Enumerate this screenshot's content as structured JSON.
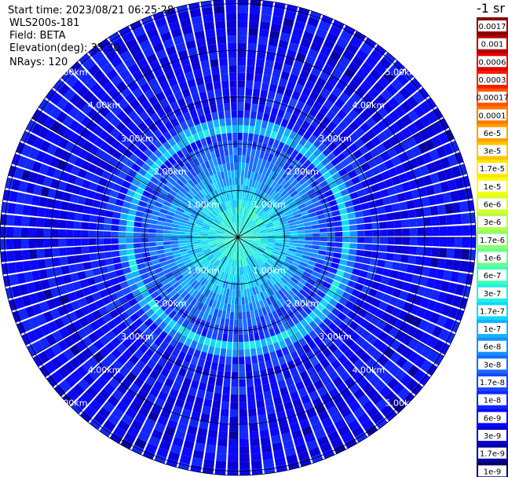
{
  "header": {
    "start_time": "Start time: 2023/08/21 06:25:28",
    "instrument": "WLS200s-181",
    "field": "Field: BETA",
    "elevation": "Elevation(deg): 35.30",
    "nrays": "NRays: 120"
  },
  "chart_data": {
    "type": "heatmap",
    "projection": "polar-ppi",
    "field": "BETA",
    "units_label": "-1 sr",
    "nrays": 120,
    "range_rings_km": [
      1.0,
      2.0,
      3.0,
      4.0,
      5.0
    ],
    "range_labels": [
      "1.00km",
      "2.00km",
      "3.00km",
      "4.00km",
      "5.00km"
    ],
    "max_range_km": 5.0,
    "radial_lines_deg": [
      0,
      30,
      60,
      90,
      120,
      150,
      180,
      210,
      240,
      270,
      300,
      330
    ],
    "colorbar": {
      "ticks": [
        "0.0017",
        "0.001",
        "0.0006",
        "0.0003",
        "0.00017",
        "0.0001",
        "6e-5",
        "3e-5",
        "1.7e-5",
        "1e-5",
        "6e-6",
        "3e-6",
        "1.7e-6",
        "1e-6",
        "6e-7",
        "3e-7",
        "1.7e-7",
        "1e-7",
        "6e-8",
        "3e-8",
        "1.7e-8",
        "1e-8",
        "6e-9",
        "3e-9",
        "1.7e-9",
        "1e-9"
      ],
      "colors": [
        "#8a0000",
        "#b40000",
        "#e00000",
        "#ff1a00",
        "#ff5500",
        "#ff7a00",
        "#ffa000",
        "#ffc400",
        "#ffe500",
        "#f4ff10",
        "#d8ff30",
        "#b6ff4a",
        "#90ff6a",
        "#66ff90",
        "#40ffb8",
        "#20f0e0",
        "#10d8ff",
        "#10b4ff",
        "#1890ff",
        "#1a6cff",
        "#1848ff",
        "#1226ff",
        "#0a08ff",
        "#0800d6",
        "#06009c",
        "#040066"
      ]
    },
    "profile": {
      "description_bins_km": [
        0.2,
        0.6,
        1.0,
        1.4,
        1.8,
        2.2,
        2.35,
        2.6,
        3.0,
        3.5,
        4.0,
        4.5,
        5.0
      ],
      "log10_beta": [
        -6.4,
        -6.6,
        -6.9,
        -7.2,
        -7.5,
        -7.9,
        -6.5,
        -7.9,
        -8.1,
        -8.15,
        -8.2,
        -8.2,
        -8.2
      ]
    }
  }
}
